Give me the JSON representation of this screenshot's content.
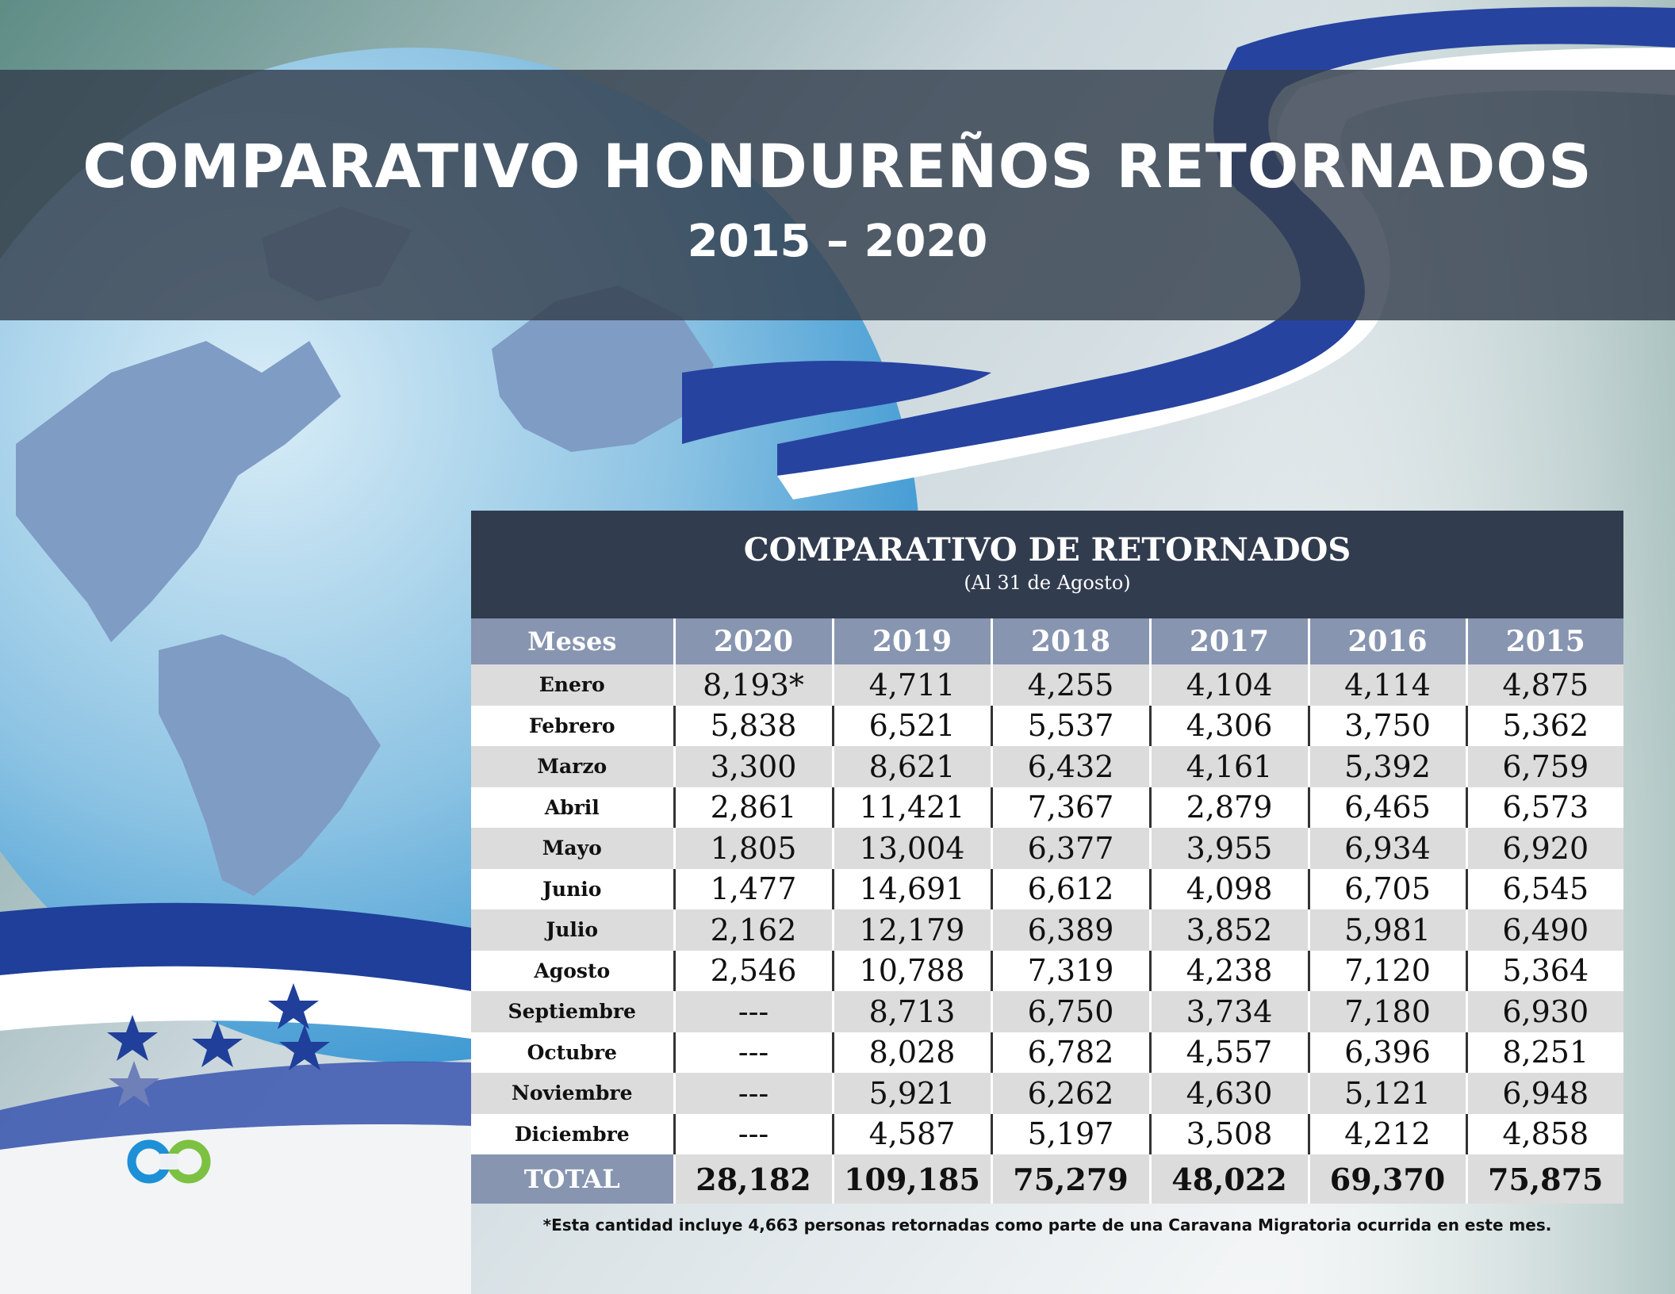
{
  "header": {
    "title": "COMPARATIVO HONDUREÑOS RETORNADOS",
    "subtitle": "2015 – 2020"
  },
  "table": {
    "title": "COMPARATIVO DE RETORNADOS",
    "subtitle": "(Al 31 de Agosto)",
    "columns": [
      "Meses",
      "2020",
      "2019",
      "2018",
      "2017",
      "2016",
      "2015"
    ],
    "rows": [
      [
        "Enero",
        "8,193*",
        "4,711",
        "4,255",
        "4,104",
        "4,114",
        "4,875"
      ],
      [
        "Febrero",
        "5,838",
        "6,521",
        "5,537",
        "4,306",
        "3,750",
        "5,362"
      ],
      [
        "Marzo",
        "3,300",
        "8,621",
        "6,432",
        "4,161",
        "5,392",
        "6,759"
      ],
      [
        "Abril",
        "2,861",
        "11,421",
        "7,367",
        "2,879",
        "6,465",
        "6,573"
      ],
      [
        "Mayo",
        "1,805",
        "13,004",
        "6,377",
        "3,955",
        "6,934",
        "6,920"
      ],
      [
        "Junio",
        "1,477",
        "14,691",
        "6,612",
        "4,098",
        "6,705",
        "6,545"
      ],
      [
        "Julio",
        "2,162",
        "12,179",
        "6,389",
        "3,852",
        "5,981",
        "6,490"
      ],
      [
        "Agosto",
        "2,546",
        "10,788",
        "7,319",
        "4,238",
        "7,120",
        "5,364"
      ],
      [
        "Septiembre",
        "---",
        "8,713",
        "6,750",
        "3,734",
        "7,180",
        "6,930"
      ],
      [
        "Octubre",
        "---",
        "8,028",
        "6,782",
        "4,557",
        "6,396",
        "8,251"
      ],
      [
        "Noviembre",
        "---",
        "5,921",
        "6,262",
        "4,630",
        "5,121",
        "6,948"
      ],
      [
        "Diciembre",
        "---",
        "4,587",
        "5,197",
        "3,508",
        "4,212",
        "4,858"
      ]
    ],
    "total": [
      "TOTAL",
      "28,182",
      "109,185",
      "75,279",
      "48,022",
      "69,370",
      "75,875"
    ]
  },
  "footnote": "*Esta cantidad incluye 4,663 personas retornadas como parte de una Caravana Migratoria ocurrida en este mes.",
  "colors": {
    "banner": "#34404e",
    "table_header": "#323c4f",
    "column_header": "#8795b0",
    "row_alt": "#dcdcdc",
    "flag_blue": "#1f3f9a",
    "logo_blue": "#1e90d6",
    "logo_green": "#7cc142"
  }
}
